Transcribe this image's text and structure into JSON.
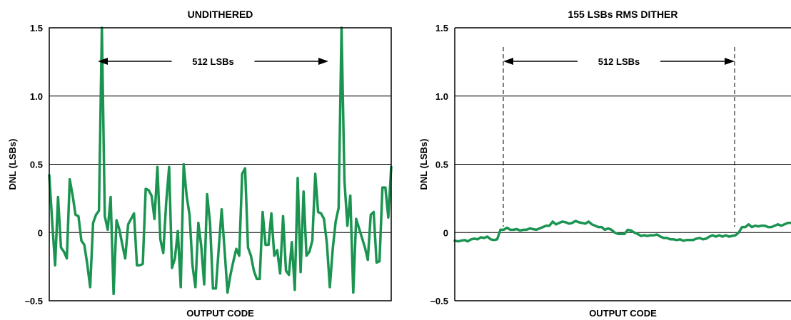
{
  "chart_data": [
    {
      "type": "line",
      "title": "UNDITHERED",
      "xlabel": "OUTPUT CODE",
      "ylabel": "DNL (LSBs)",
      "ylim": [
        -0.5,
        1.5
      ],
      "yticks": [
        "1.5",
        "1.0",
        "0.5",
        "0",
        "–0.5"
      ],
      "grid": true,
      "color": "#1a9450",
      "annotation": {
        "label": "512 LSBs"
      },
      "series": [
        {
          "values": [
            0.42,
            0.08,
            -0.24,
            0.26,
            -0.11,
            -0.14,
            -0.19,
            0.39,
            0.27,
            0.13,
            0.12,
            -0.06,
            -0.09,
            -0.23,
            -0.4,
            0.07,
            0.13,
            0.16,
            1.5,
            0.12,
            0.02,
            0.26,
            -0.45,
            0.09,
            0.02,
            -0.09,
            -0.19,
            0.06,
            0.1,
            0.14,
            -0.24,
            -0.24,
            -0.23,
            0.32,
            0.31,
            0.27,
            0.1,
            0.48,
            -0.05,
            -0.15,
            0.22,
            0.48,
            -0.26,
            -0.19,
            0.01,
            -0.4,
            0.5,
            0.27,
            0.13,
            -0.24,
            -0.4,
            0.07,
            -0.1,
            -0.38,
            0.28,
            0.07,
            -0.41,
            -0.41,
            -0.11,
            0.17,
            -0.13,
            -0.44,
            -0.31,
            -0.21,
            -0.12,
            -0.17,
            0.43,
            0.47,
            -0.11,
            -0.17,
            -0.28,
            -0.34,
            -0.34,
            0.15,
            -0.09,
            -0.09,
            0.14,
            -0.17,
            -0.13,
            -0.3,
            0.12,
            -0.28,
            -0.31,
            -0.07,
            -0.42,
            0.4,
            -0.29,
            0.3,
            -0.17,
            -0.14,
            -0.06,
            0.43,
            0.15,
            0.14,
            0.1,
            -0.08,
            -0.4,
            -0.12,
            0.08,
            0.18,
            1.5,
            0.38,
            0.05,
            0.27,
            -0.44,
            0.1,
            0.03,
            -0.04,
            -0.11,
            -0.2,
            0.13,
            0.15,
            -0.22,
            -0.21,
            0.33,
            0.33,
            0.11,
            0.48
          ]
        }
      ]
    },
    {
      "type": "line",
      "title": "155 LSBs RMS DITHER",
      "xlabel": "OUTPUT CODE",
      "ylabel": "DNL (LSBs)",
      "ylim": [
        -0.5,
        1.5
      ],
      "yticks": [
        "1.5",
        "1.0",
        "0.5",
        "0",
        "–0.5"
      ],
      "grid": true,
      "color": "#1a9450",
      "annotation": {
        "label": "512 LSBs"
      },
      "series": [
        {
          "values": [
            -0.06,
            -0.065,
            -0.06,
            -0.055,
            -0.065,
            -0.05,
            -0.045,
            -0.05,
            -0.035,
            -0.04,
            -0.03,
            -0.05,
            -0.055,
            -0.05,
            0.02,
            0.02,
            0.035,
            0.02,
            0.02,
            0.025,
            0.015,
            0.02,
            0.02,
            0.03,
            0.025,
            0.02,
            0.03,
            0.04,
            0.05,
            0.05,
            0.08,
            0.06,
            0.07,
            0.08,
            0.075,
            0.065,
            0.07,
            0.085,
            0.075,
            0.07,
            0.065,
            0.08,
            0.06,
            0.05,
            0.04,
            0.04,
            0.02,
            0.03,
            0.02,
            0.0,
            -0.01,
            -0.01,
            -0.01,
            0.02,
            0.015,
            0.0,
            -0.01,
            -0.025,
            -0.02,
            -0.025,
            -0.02,
            -0.02,
            -0.015,
            -0.03,
            -0.04,
            -0.04,
            -0.05,
            -0.05,
            -0.055,
            -0.05,
            -0.06,
            -0.055,
            -0.055,
            -0.055,
            -0.045,
            -0.04,
            -0.05,
            -0.045,
            -0.03,
            -0.02,
            -0.03,
            -0.02,
            -0.03,
            -0.02,
            -0.03,
            -0.025,
            -0.02,
            0.0,
            0.04,
            0.04,
            0.06,
            0.04,
            0.05,
            0.045,
            0.05,
            0.05,
            0.04,
            0.04,
            0.05,
            0.06,
            0.05,
            0.06,
            0.07,
            0.07
          ]
        }
      ]
    }
  ]
}
